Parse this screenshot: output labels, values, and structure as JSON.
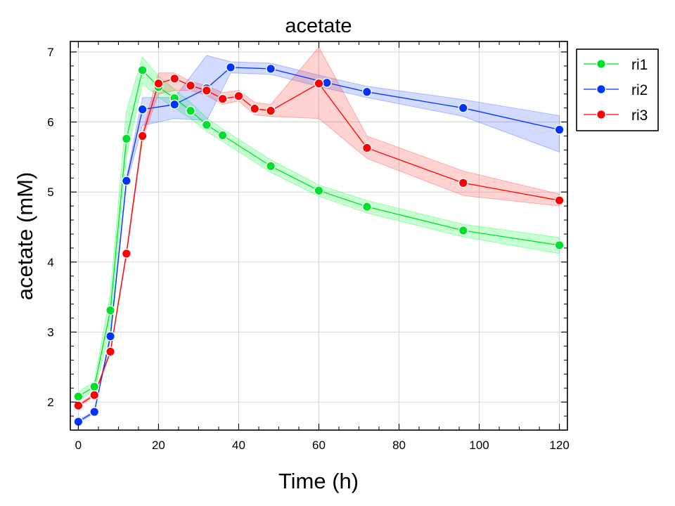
{
  "chart_data": {
    "type": "line",
    "title": "acetate",
    "xlabel": "Time (h)",
    "ylabel": "acetate (mM)",
    "xlim": [
      -2,
      122
    ],
    "ylim": [
      1.6,
      7.15
    ],
    "xticks": [
      0,
      20,
      40,
      60,
      80,
      100,
      120
    ],
    "yticks": [
      2,
      3,
      4,
      5,
      6,
      7
    ],
    "grid": true,
    "legend_position": "outside-top-right",
    "series": [
      {
        "name": "ri1",
        "color": "#00e02a",
        "fill": "#00ff30",
        "x": [
          0,
          4,
          8,
          12,
          16,
          20,
          24,
          28,
          32,
          36,
          48,
          60,
          72,
          96,
          120
        ],
        "y": [
          2.08,
          2.22,
          3.31,
          5.76,
          6.74,
          6.5,
          6.34,
          6.16,
          5.96,
          5.81,
          5.37,
          5.02,
          4.79,
          4.45,
          4.24
        ],
        "lower": [
          2.03,
          2.15,
          3.05,
          5.5,
          6.55,
          6.35,
          6.2,
          6.05,
          5.86,
          5.72,
          5.28,
          4.94,
          4.7,
          4.36,
          4.12
        ],
        "upper": [
          2.14,
          2.3,
          3.55,
          6.15,
          6.93,
          6.65,
          6.47,
          6.28,
          6.06,
          5.9,
          5.46,
          5.1,
          4.88,
          4.54,
          4.35
        ]
      },
      {
        "name": "ri2",
        "color": "#0033ff",
        "fill": "#3355ff",
        "x": [
          0,
          4,
          8,
          12,
          16,
          24,
          32,
          38,
          48,
          62,
          72,
          96,
          120
        ],
        "y": [
          1.72,
          1.86,
          2.94,
          5.16,
          6.18,
          6.25,
          6.48,
          6.78,
          6.76,
          6.56,
          6.43,
          6.2,
          5.89
        ],
        "lower": [
          1.7,
          1.84,
          2.9,
          5.1,
          5.95,
          6.05,
          6.02,
          6.7,
          6.68,
          6.48,
          6.35,
          6.08,
          5.57
        ],
        "upper": [
          1.74,
          1.88,
          2.98,
          5.2,
          6.35,
          6.35,
          6.95,
          6.86,
          6.84,
          6.64,
          6.51,
          6.32,
          6.09
        ]
      },
      {
        "name": "ri3",
        "color": "#ff0000",
        "fill": "#ff3333",
        "x": [
          0,
          4,
          8,
          12,
          16,
          20,
          24,
          28,
          32,
          36,
          40,
          44,
          48,
          60,
          72,
          96,
          120
        ],
        "y": [
          1.95,
          2.1,
          2.72,
          4.12,
          5.8,
          6.55,
          6.62,
          6.52,
          6.45,
          6.33,
          6.37,
          6.19,
          6.16,
          6.55,
          5.63,
          5.13,
          4.88
        ],
        "lower": [
          1.93,
          2.08,
          2.7,
          4.08,
          5.75,
          6.4,
          6.45,
          6.45,
          6.38,
          6.25,
          6.3,
          6.1,
          6.08,
          6.05,
          5.48,
          4.95,
          4.8
        ],
        "upper": [
          1.97,
          2.12,
          2.74,
          4.16,
          5.85,
          6.7,
          6.7,
          6.58,
          6.52,
          6.42,
          6.45,
          6.28,
          6.25,
          7.07,
          5.8,
          5.3,
          4.97
        ]
      }
    ]
  }
}
